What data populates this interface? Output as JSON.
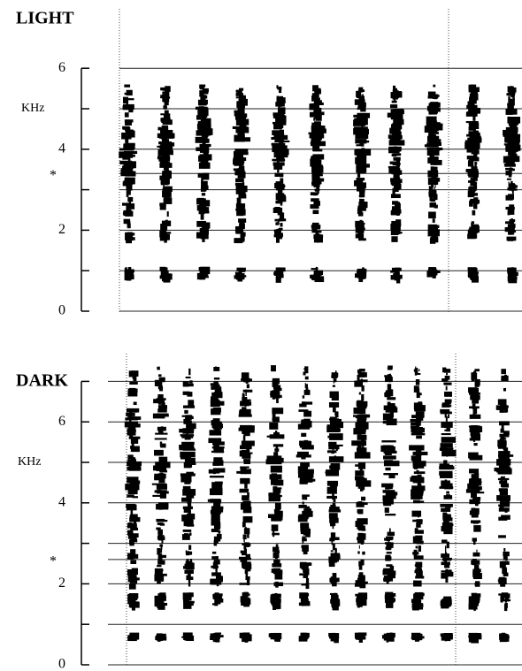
{
  "chart_data": [
    {
      "type": "spectrogram",
      "title": "LIGHT",
      "y_label": "KHz",
      "annotation": {
        "text": "*",
        "value": 3.4
      },
      "ylim": [
        0,
        6
      ],
      "yticks": [
        0,
        2,
        4,
        6
      ],
      "minor_yticks": [
        1,
        3,
        5
      ],
      "grid": true,
      "color": "#000000"
    },
    {
      "type": "spectrogram",
      "title": "DARK",
      "y_label": "KHz",
      "annotation": {
        "text": "*",
        "value": 2.6
      },
      "ylim": [
        0,
        7
      ],
      "yticks": [
        0,
        2,
        4,
        6
      ],
      "minor_yticks": [
        1,
        3,
        5,
        7
      ],
      "grid": true,
      "color": "#000000"
    }
  ]
}
